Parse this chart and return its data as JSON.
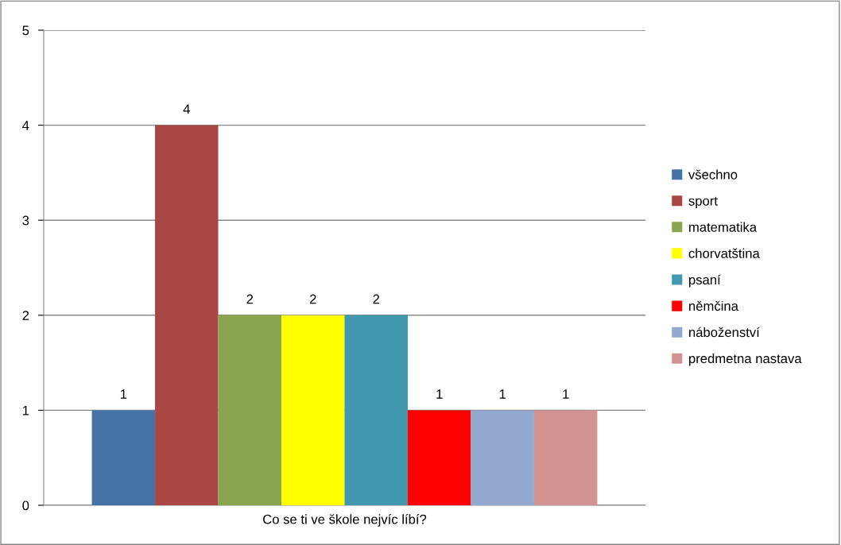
{
  "chart_data": {
    "type": "bar",
    "categories": [
      "Co se ti ve škole nejvíc líbí?"
    ],
    "series": [
      {
        "name": "všechno",
        "color": "#4572a7",
        "values": [
          1
        ]
      },
      {
        "name": "sport",
        "color": "#aa4643",
        "values": [
          4
        ]
      },
      {
        "name": "matematika",
        "color": "#89a54e",
        "values": [
          2
        ]
      },
      {
        "name": "chorvatština",
        "color": "#ffff00",
        "values": [
          2
        ]
      },
      {
        "name": "psaní",
        "color": "#4198af",
        "values": [
          2
        ]
      },
      {
        "name": "němčina",
        "color": "#ff0000",
        "values": [
          1
        ]
      },
      {
        "name": "náboženství",
        "color": "#93a9cf",
        "values": [
          1
        ]
      },
      {
        "name": "predmetna nastava",
        "color": "#d19392",
        "values": [
          1
        ]
      }
    ],
    "ylim": [
      0,
      5
    ],
    "yticks": [
      0,
      1,
      2,
      3,
      4,
      5
    ],
    "grid": "y",
    "legend": "right",
    "data_labels": true
  }
}
